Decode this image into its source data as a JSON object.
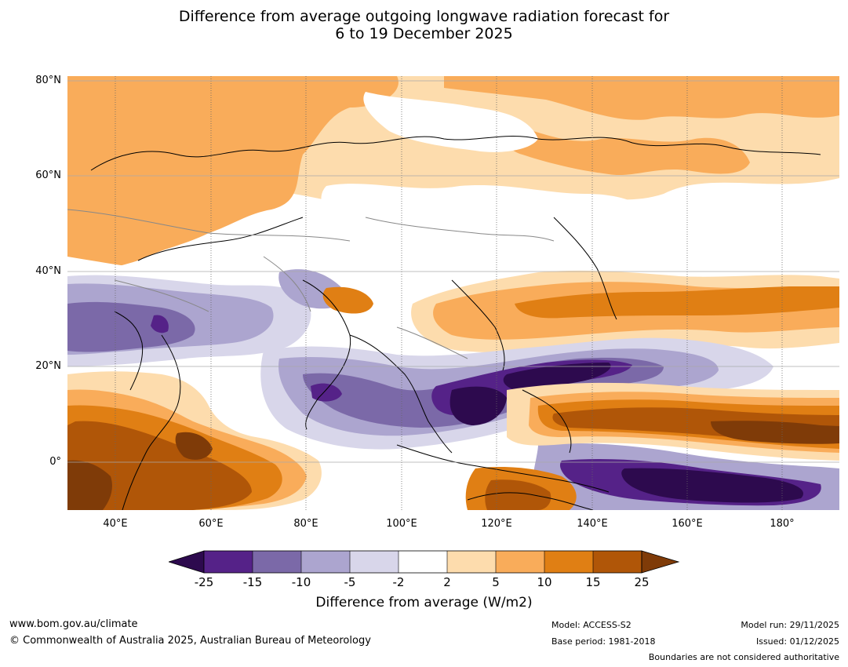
{
  "title": {
    "line1": "Difference from average outgoing longwave radiation forecast for",
    "line2": "6 to 19 December 2025"
  },
  "map": {
    "lat_labels": [
      "80°N",
      "60°N",
      "40°N",
      "20°N",
      "0°"
    ],
    "lon_labels": [
      "40°E",
      "60°E",
      "80°E",
      "100°E",
      "120°E",
      "140°E",
      "160°E",
      "180°"
    ],
    "colors": {
      "purple_darkest": "#2d0a4e",
      "purple_dark": "#552288",
      "purple_mid": "#7b69a8",
      "purple_light": "#aca5cf",
      "purple_pale": "#d8d6ea",
      "neutral": "#ffffff",
      "orange_pale": "#fddcad",
      "orange_light": "#f9ac5a",
      "orange_mid": "#e07f14",
      "orange_dark": "#b05608",
      "brown": "#7f3b08"
    }
  },
  "colorbar": {
    "ticks": [
      "-25",
      "-15",
      "-10",
      "-5",
      "-2",
      "2",
      "5",
      "10",
      "15",
      "25"
    ],
    "label": "Difference from average (W/m2)"
  },
  "footer": {
    "website": "www.bom.gov.au/climate",
    "copyright": "© Commonwealth of Australia 2025, Australian Bureau of Meteorology",
    "model": "Model: ACCESS-S2",
    "base_period": "Base period: 1981-2018",
    "model_run": "Model run: 29/11/2025",
    "issued": "Issued: 01/12/2025",
    "disclaimer": "Boundaries are not considered authoritative"
  }
}
